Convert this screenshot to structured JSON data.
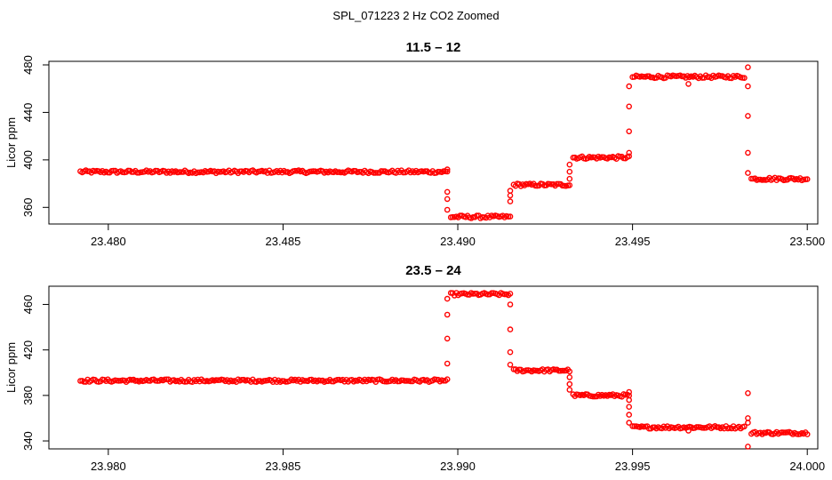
{
  "figure": {
    "title": "SPL_071223  2 Hz CO2 Zoomed",
    "point_color": "#ff0000"
  },
  "chart_data": [
    {
      "type": "scatter",
      "title": "11.5 – 12",
      "xlabel": "",
      "ylabel": "Licor ppm",
      "xlim": [
        23.4783,
        23.5003
      ],
      "ylim": [
        346,
        483
      ],
      "x_ticks": [
        "23.480",
        "23.485",
        "23.490",
        "23.495",
        "23.500"
      ],
      "x_tick_values": [
        23.48,
        23.485,
        23.49,
        23.495,
        23.5
      ],
      "y_ticks": [
        "360",
        "400",
        "440",
        "480"
      ],
      "y_tick_values": [
        360,
        400,
        440,
        480
      ],
      "grid": false,
      "segments": [
        {
          "x_start": 23.4792,
          "x_end": 23.4897,
          "y": 390
        },
        {
          "x_start": 23.4898,
          "x_end": 23.4915,
          "y": 352
        },
        {
          "x_start": 23.4916,
          "x_end": 23.4932,
          "y": 379
        },
        {
          "x_start": 23.4933,
          "x_end": 23.4949,
          "y": 402
        },
        {
          "x_start": 23.495,
          "x_end": 23.4982,
          "y": 470
        },
        {
          "x_start": 23.4984,
          "x_end": 23.5,
          "y": 384
        }
      ],
      "transition_points": [
        [
          23.4897,
          392
        ],
        [
          23.4897,
          373
        ],
        [
          23.4897,
          367
        ],
        [
          23.4897,
          358
        ],
        [
          23.4915,
          365
        ],
        [
          23.4915,
          370
        ],
        [
          23.4915,
          374
        ],
        [
          23.4932,
          384
        ],
        [
          23.4932,
          390
        ],
        [
          23.4932,
          396
        ],
        [
          23.4949,
          406
        ],
        [
          23.4949,
          424
        ],
        [
          23.4949,
          445
        ],
        [
          23.4949,
          462
        ],
        [
          23.4966,
          464
        ],
        [
          23.4983,
          478
        ],
        [
          23.4983,
          462
        ],
        [
          23.4983,
          437
        ],
        [
          23.4983,
          406
        ],
        [
          23.4983,
          389
        ]
      ]
    },
    {
      "type": "scatter",
      "title": "23.5 – 24",
      "xlabel": "",
      "ylabel": "Licor ppm",
      "xlim": [
        23.9783,
        24.0003
      ],
      "ylim": [
        333,
        476
      ],
      "x_ticks": [
        "23.980",
        "23.985",
        "23.990",
        "23.995",
        "24.000"
      ],
      "x_tick_values": [
        23.98,
        23.985,
        23.99,
        23.995,
        24.0
      ],
      "y_ticks": [
        "340",
        "380",
        "420",
        "460"
      ],
      "y_tick_values": [
        340,
        380,
        420,
        460
      ],
      "grid": false,
      "segments": [
        {
          "x_start": 23.9792,
          "x_end": 23.9897,
          "y": 393
        },
        {
          "x_start": 23.9898,
          "x_end": 23.9915,
          "y": 469
        },
        {
          "x_start": 23.9916,
          "x_end": 23.9932,
          "y": 402
        },
        {
          "x_start": 23.9933,
          "x_end": 23.9949,
          "y": 380
        },
        {
          "x_start": 23.995,
          "x_end": 23.9982,
          "y": 352
        },
        {
          "x_start": 23.9984,
          "x_end": 24.0,
          "y": 347
        }
      ],
      "transition_points": [
        [
          23.9897,
          408
        ],
        [
          23.9897,
          430
        ],
        [
          23.9897,
          451
        ],
        [
          23.9897,
          465
        ],
        [
          23.9915,
          460
        ],
        [
          23.9915,
          438
        ],
        [
          23.9915,
          418
        ],
        [
          23.9915,
          407
        ],
        [
          23.9932,
          396
        ],
        [
          23.9932,
          390
        ],
        [
          23.9932,
          385
        ],
        [
          23.9949,
          383
        ],
        [
          23.9949,
          376
        ],
        [
          23.9949,
          370
        ],
        [
          23.9949,
          363
        ],
        [
          23.9949,
          356
        ],
        [
          23.9966,
          349
        ],
        [
          23.9983,
          382
        ],
        [
          23.9983,
          360
        ],
        [
          23.9983,
          356
        ],
        [
          23.9983,
          335
        ]
      ]
    }
  ]
}
